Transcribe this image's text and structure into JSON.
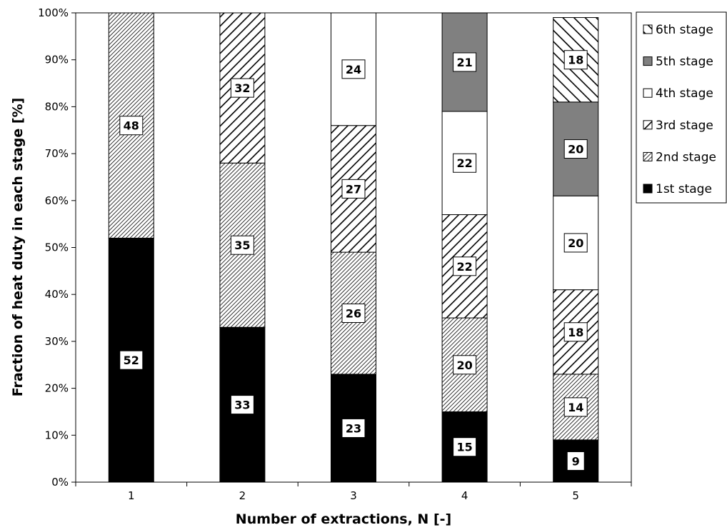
{
  "chart_data": {
    "type": "bar",
    "stacked": true,
    "categories": [
      "1",
      "2",
      "3",
      "4",
      "5"
    ],
    "xlabel": "Number of extractions, N [-]",
    "ylabel": "Fraction of heat duty in each stage [%]",
    "ylim": [
      0,
      100
    ],
    "yticks": [
      "0%",
      "10%",
      "20%",
      "30%",
      "40%",
      "50%",
      "60%",
      "70%",
      "80%",
      "90%",
      "100%"
    ],
    "grid": false,
    "legend_position": "right",
    "series": [
      {
        "name": "1st stage",
        "pattern": "solid-black",
        "values": [
          52,
          33,
          23,
          15,
          9
        ],
        "labels": [
          "52",
          "33",
          "23",
          "15",
          "9"
        ]
      },
      {
        "name": "2nd stage",
        "pattern": "dense-diagonal-down",
        "values": [
          48,
          35,
          26,
          20,
          14
        ],
        "labels": [
          "48",
          "35",
          "26",
          "20",
          "14"
        ]
      },
      {
        "name": "3rd stage",
        "pattern": "wide-diagonal-down",
        "values": [
          null,
          32,
          27,
          22,
          18
        ],
        "labels": [
          "",
          "32",
          "27",
          "22",
          "18"
        ]
      },
      {
        "name": "4th stage",
        "pattern": "white",
        "values": [
          null,
          null,
          24,
          22,
          20
        ],
        "labels": [
          "",
          "",
          "24",
          "22",
          "20"
        ]
      },
      {
        "name": "5th stage",
        "pattern": "solid-gray",
        "values": [
          null,
          null,
          null,
          21,
          20
        ],
        "labels": [
          "",
          "",
          "",
          "21",
          "20"
        ]
      },
      {
        "name": "6th stage",
        "pattern": "wide-diagonal-up",
        "values": [
          null,
          null,
          null,
          null,
          18
        ],
        "labels": [
          "",
          "",
          "",
          "",
          "18"
        ]
      }
    ]
  }
}
